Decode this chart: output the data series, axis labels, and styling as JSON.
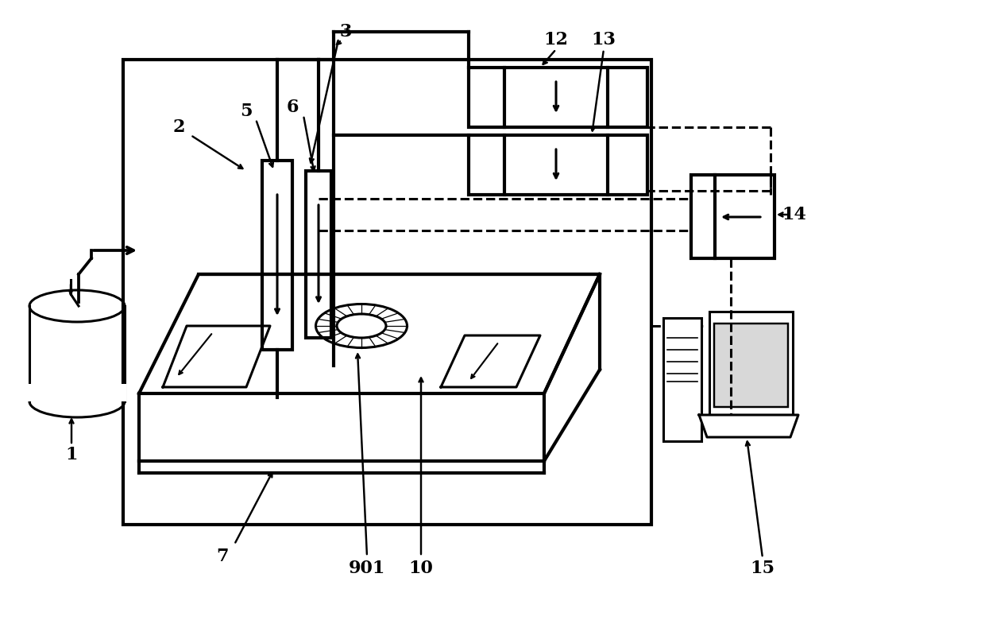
{
  "bg_color": "#ffffff",
  "lc": "#000000",
  "lw": 2.2,
  "tlw": 3.0,
  "fig_w": 12.4,
  "fig_h": 7.8,
  "dpi": 100
}
